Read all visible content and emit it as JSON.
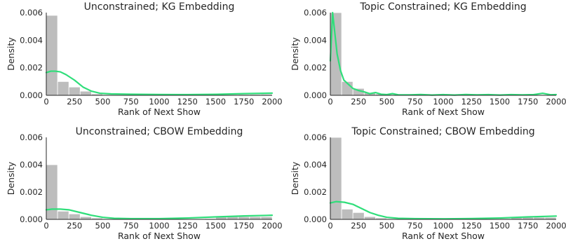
{
  "chart_data": [
    {
      "type": "histogram",
      "title": "Unconstrained; KG Embedding",
      "xlabel": "Rank of Next Show",
      "ylabel": "Density",
      "xlim": [
        0,
        2000
      ],
      "ylim": [
        0,
        0.006
      ],
      "xticks": [
        "0",
        "250",
        "500",
        "750",
        "1000",
        "1250",
        "1500",
        "1750",
        "2000"
      ],
      "yticks": [
        "0.000",
        "0.002",
        "0.004",
        "0.006"
      ],
      "bin_width": 100,
      "bars": [
        0.0058,
        0.001,
        0.0006,
        0.0003,
        0.0001,
        5e-05,
        4e-05,
        4e-05,
        4e-05,
        3e-05,
        3e-05,
        3e-05,
        3e-05,
        3e-05,
        4e-05,
        5e-05,
        5e-05,
        6e-05,
        7e-05,
        8e-05
      ],
      "kde": [
        [
          0,
          0.00165
        ],
        [
          40,
          0.00175
        ],
        [
          80,
          0.00175
        ],
        [
          125,
          0.0017
        ],
        [
          175,
          0.0015
        ],
        [
          250,
          0.0011
        ],
        [
          325,
          0.0006
        ],
        [
          400,
          0.0003
        ],
        [
          475,
          0.00015
        ],
        [
          575,
          0.0001
        ],
        [
          750,
          8e-05
        ],
        [
          1000,
          6e-05
        ],
        [
          1250,
          5e-05
        ],
        [
          1500,
          7e-05
        ],
        [
          1750,
          0.00012
        ],
        [
          2000,
          0.00016
        ]
      ],
      "bar_color": "#bdbdbd",
      "line_color": "#2fde7a"
    },
    {
      "type": "histogram",
      "title": "Topic Constrained; KG Embedding",
      "xlabel": "Rank of Next Show",
      "ylabel": "Density",
      "xlim": [
        0,
        2000
      ],
      "ylim": [
        0,
        0.006
      ],
      "xticks": [
        "0",
        "250",
        "500",
        "750",
        "1000",
        "1250",
        "1500",
        "1750",
        "2000"
      ],
      "yticks": [
        "0.000",
        "0.002",
        "0.004",
        "0.006"
      ],
      "bin_width": 100,
      "bars": [
        0.006,
        0.001,
        0.0005,
        0.0002,
        0.0001,
        5e-05,
        4e-05,
        3e-05,
        3e-05,
        3e-05,
        3e-05,
        3e-05,
        3e-05,
        3e-05,
        3e-05,
        3e-05,
        3e-05,
        3e-05,
        3e-05,
        3e-05
      ],
      "kde": [
        [
          0,
          0.0025
        ],
        [
          20,
          0.006
        ],
        [
          40,
          0.0045
        ],
        [
          60,
          0.003
        ],
        [
          90,
          0.0018
        ],
        [
          120,
          0.0011
        ],
        [
          160,
          0.0008
        ],
        [
          200,
          0.0005
        ],
        [
          250,
          0.00035
        ],
        [
          300,
          0.00025
        ],
        [
          350,
          0.00012
        ],
        [
          400,
          0.0002
        ],
        [
          450,
          8e-05
        ],
        [
          500,
          5e-05
        ],
        [
          550,
          0.00012
        ],
        [
          600,
          4e-05
        ],
        [
          700,
          3e-05
        ],
        [
          800,
          6e-05
        ],
        [
          900,
          2e-05
        ],
        [
          1000,
          5e-05
        ],
        [
          1100,
          2e-05
        ],
        [
          1200,
          6e-05
        ],
        [
          1300,
          3e-05
        ],
        [
          1400,
          5e-05
        ],
        [
          1500,
          2e-05
        ],
        [
          1600,
          5e-05
        ],
        [
          1700,
          3e-05
        ],
        [
          1800,
          5e-05
        ],
        [
          1880,
          0.00015
        ],
        [
          1950,
          4e-05
        ],
        [
          2000,
          5e-05
        ]
      ],
      "bar_color": "#bdbdbd",
      "line_color": "#2fde7a"
    },
    {
      "type": "histogram",
      "title": "Unconstrained; CBOW Embedding",
      "xlabel": "Rank of Next Show",
      "ylabel": "Density",
      "xlim": [
        0,
        2000
      ],
      "ylim": [
        0,
        0.006
      ],
      "xticks": [
        "0",
        "250",
        "500",
        "750",
        "1000",
        "1250",
        "1500",
        "1750",
        "2000"
      ],
      "yticks": [
        "0.000",
        "0.002",
        "0.004",
        "0.006"
      ],
      "bin_width": 100,
      "bars": [
        0.004,
        0.0006,
        0.0004,
        0.0002,
        0.0001,
        5e-05,
        4e-05,
        4e-05,
        4e-05,
        3e-05,
        3e-05,
        3e-05,
        4e-05,
        5e-05,
        6e-05,
        0.0002,
        0.0002,
        0.0002,
        0.0002,
        0.0002
      ],
      "kde": [
        [
          0,
          0.0007
        ],
        [
          50,
          0.00075
        ],
        [
          125,
          0.00075
        ],
        [
          200,
          0.0007
        ],
        [
          300,
          0.0005
        ],
        [
          400,
          0.0003
        ],
        [
          500,
          0.00015
        ],
        [
          600,
          8e-05
        ],
        [
          750,
          5e-05
        ],
        [
          1000,
          5e-05
        ],
        [
          1250,
          0.0001
        ],
        [
          1500,
          0.00018
        ],
        [
          1750,
          0.00025
        ],
        [
          2000,
          0.0003
        ]
      ],
      "bar_color": "#bdbdbd",
      "line_color": "#2fde7a"
    },
    {
      "type": "histogram",
      "title": "Topic Constrained; CBOW Embedding",
      "xlabel": "Rank of Next Show",
      "ylabel": "Density",
      "xlim": [
        0,
        2000
      ],
      "ylim": [
        0,
        0.006
      ],
      "xticks": [
        "0",
        "250",
        "500",
        "750",
        "1000",
        "1250",
        "1500",
        "1750",
        "2000"
      ],
      "yticks": [
        "0.000",
        "0.002",
        "0.004",
        "0.006"
      ],
      "bin_width": 100,
      "bars": [
        0.006,
        0.00075,
        0.0005,
        0.0002,
        0.0001,
        5e-05,
        4e-05,
        3e-05,
        3e-05,
        3e-05,
        3e-05,
        3e-05,
        3e-05,
        4e-05,
        5e-05,
        6e-05,
        0.00015,
        0.00015,
        0.00015,
        0.00015
      ],
      "kde": [
        [
          0,
          0.0012
        ],
        [
          50,
          0.0013
        ],
        [
          125,
          0.00125
        ],
        [
          200,
          0.0011
        ],
        [
          275,
          0.0008
        ],
        [
          350,
          0.0005
        ],
        [
          425,
          0.0003
        ],
        [
          500,
          0.00015
        ],
        [
          600,
          8e-05
        ],
        [
          750,
          5e-05
        ],
        [
          1000,
          4e-05
        ],
        [
          1250,
          6e-05
        ],
        [
          1500,
          0.0001
        ],
        [
          1750,
          0.00018
        ],
        [
          2000,
          0.00024
        ]
      ],
      "bar_color": "#bdbdbd",
      "line_color": "#2fde7a"
    }
  ]
}
